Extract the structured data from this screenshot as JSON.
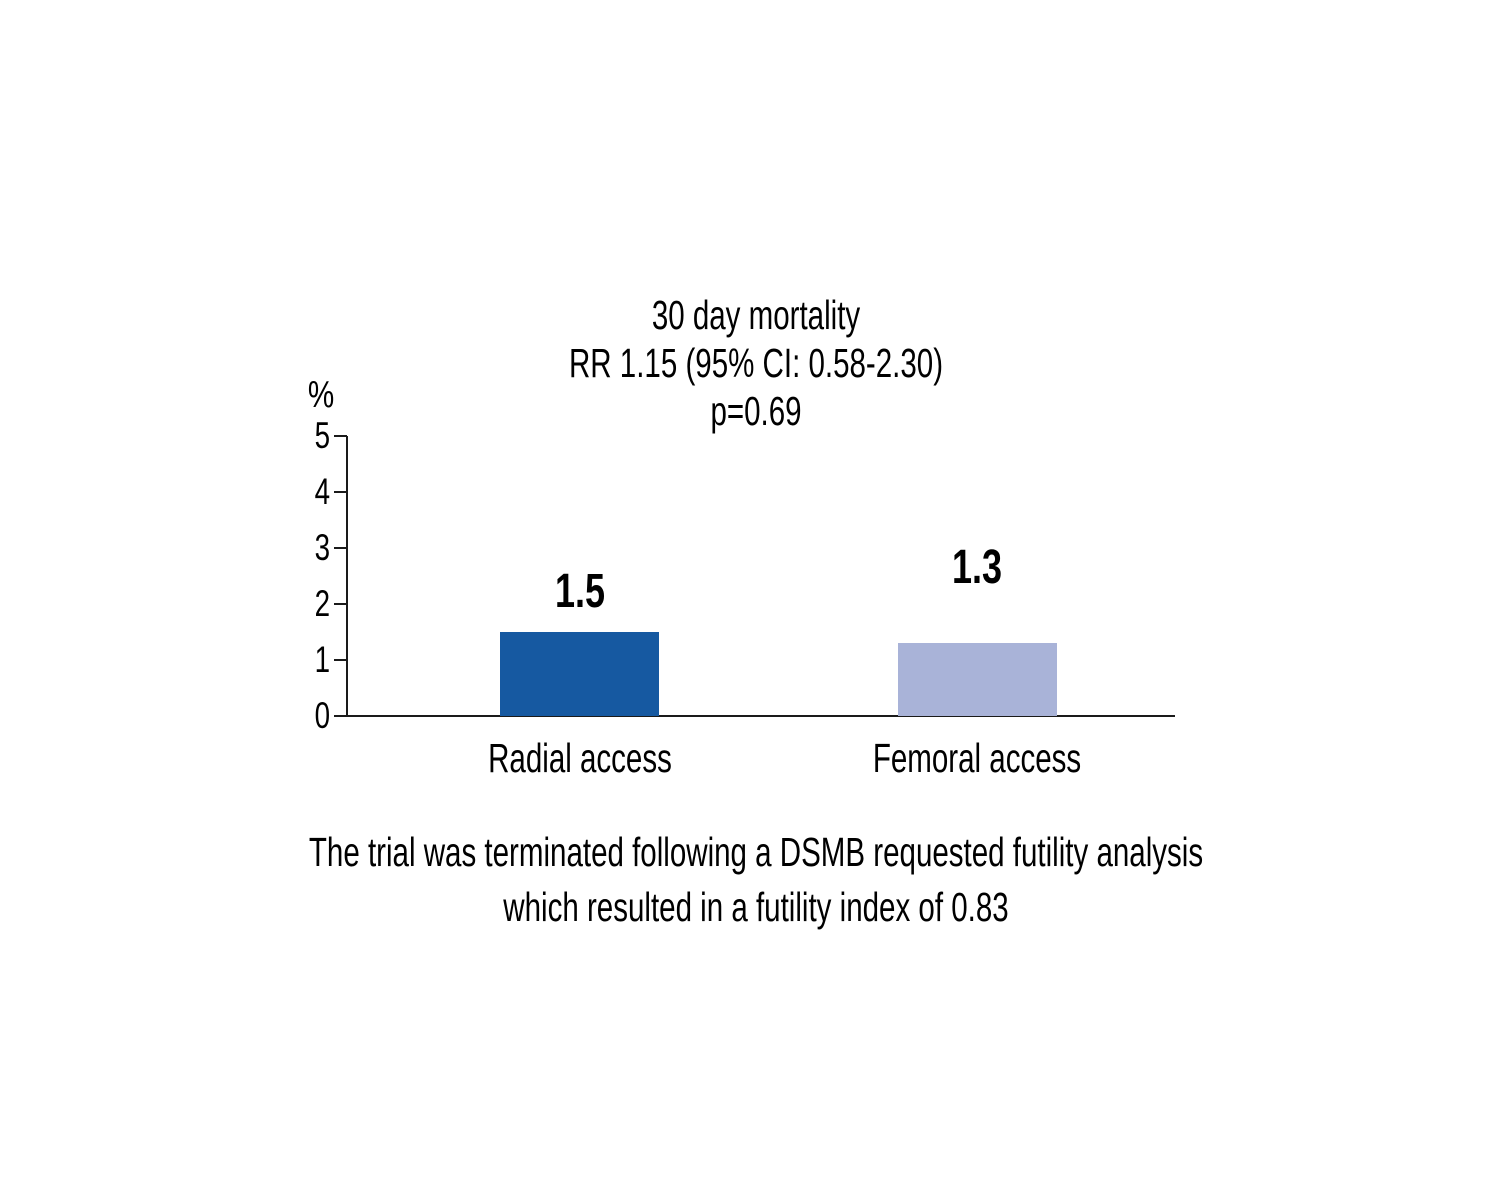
{
  "chart_data": {
    "type": "bar",
    "title_lines": [
      "30 day mortality",
      "RR 1.15 (95% CI: 0.58-2.30)",
      "p=0.69"
    ],
    "categories": [
      "Radial access",
      "Femoral access"
    ],
    "values": [
      1.5,
      1.3
    ],
    "colors": [
      "#1659A1",
      "#A9B3D8"
    ],
    "ylabel": "%",
    "xlabel": "",
    "ylim": [
      0,
      5
    ],
    "yticks": [
      5,
      4,
      3,
      2,
      1,
      0
    ],
    "grid": false,
    "legend": false,
    "footnote_lines": [
      "The trial was terminated following a DSMB requested futility analysis",
      "which resulted in a futility index of 0.83"
    ]
  }
}
